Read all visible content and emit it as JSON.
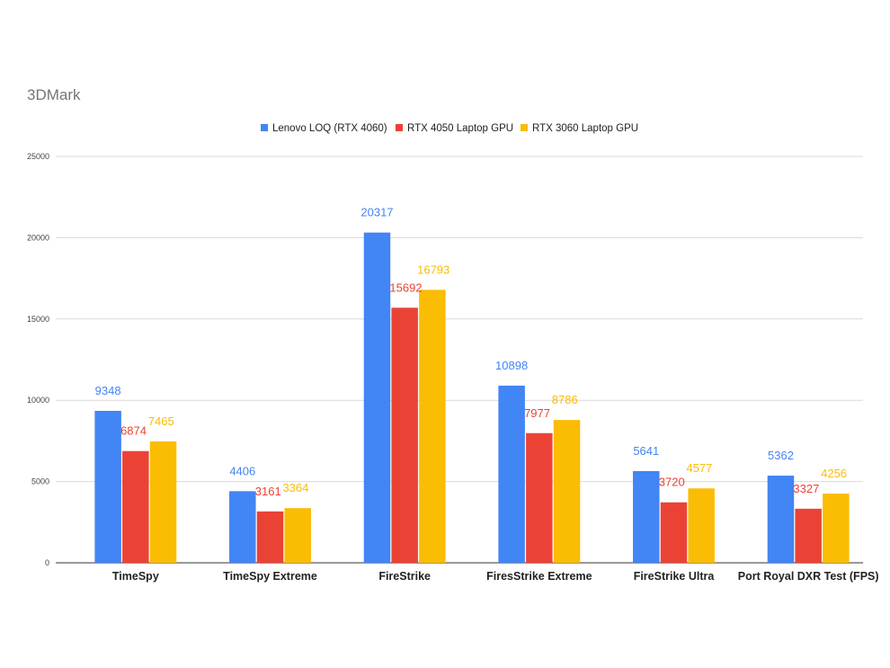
{
  "chart_data": {
    "type": "bar",
    "title": "3DMark",
    "categories": [
      "TimeSpy",
      "TimeSpy Extreme",
      "FireStrike",
      "FiresStrike Extreme",
      "FireStrike Ultra",
      "Port Royal DXR Test (FPS)"
    ],
    "series": [
      {
        "name": "Lenovo LOQ (RTX 4060)",
        "color": "#4285F4",
        "values": [
          9348,
          4406,
          20317,
          10898,
          5641,
          5362
        ]
      },
      {
        "name": "RTX 4050 Laptop GPU",
        "color": "#EA4335",
        "values": [
          6874,
          3161,
          15692,
          7977,
          3720,
          3327
        ]
      },
      {
        "name": "RTX 3060 Laptop GPU",
        "color": "#FBBC04",
        "values": [
          7465,
          3364,
          16793,
          8786,
          4577,
          4256
        ]
      }
    ],
    "ylim": [
      0,
      25000
    ],
    "yticks": [
      0,
      5000,
      10000,
      15000,
      20000,
      25000
    ],
    "xlabel": "",
    "ylabel": "",
    "grid": true,
    "legend_position": "top-center",
    "data_labels": true
  }
}
